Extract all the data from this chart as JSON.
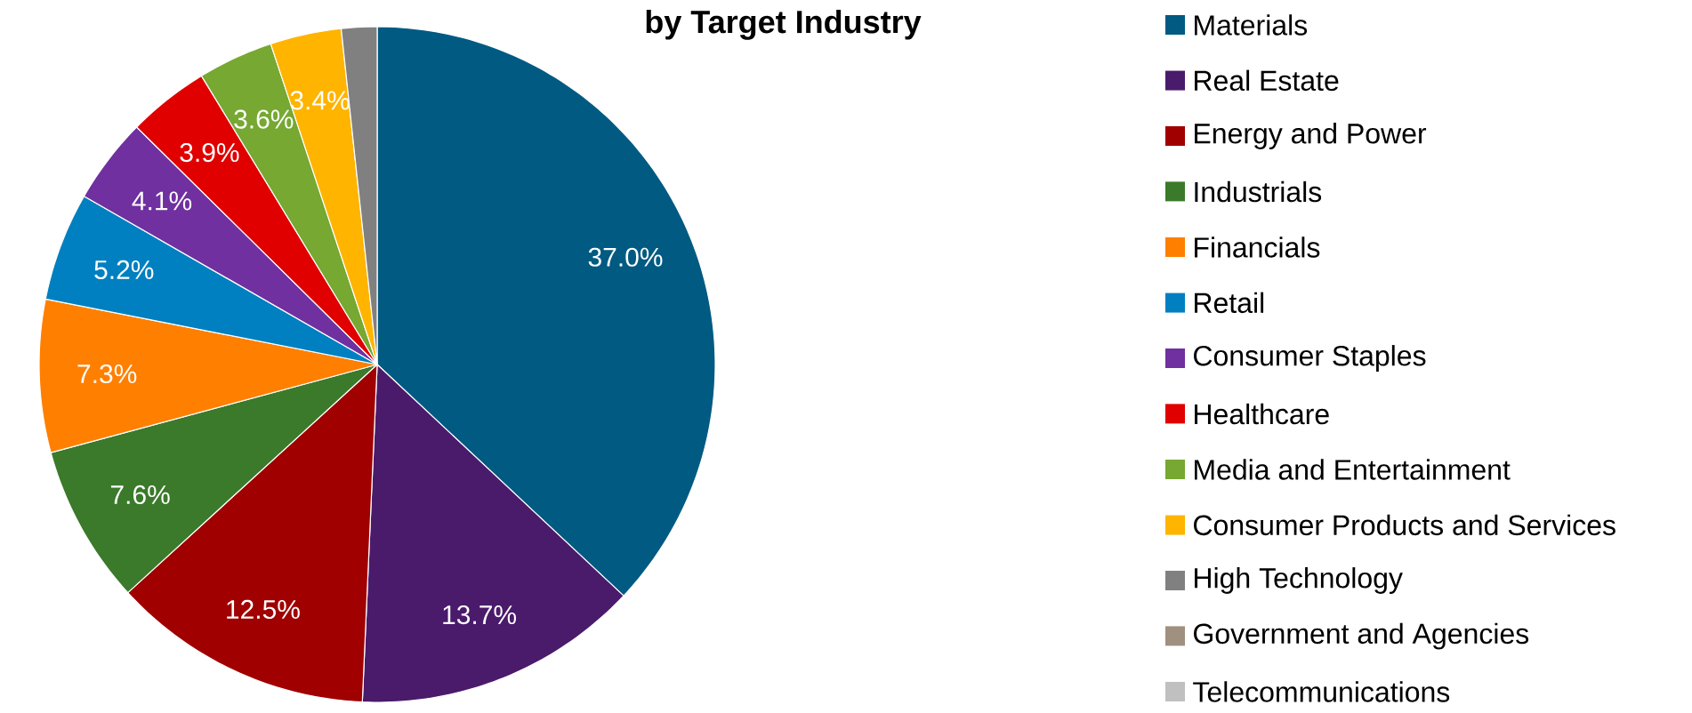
{
  "chart_data": {
    "type": "pie",
    "title": "by Target Industry",
    "categories": [
      "Materials",
      "Real Estate",
      "Energy and Power",
      "Industrials",
      "Financials",
      "Retail",
      "Consumer Staples",
      "Healthcare",
      "Media and Entertainment",
      "Consumer Products and Services",
      "High Technology",
      "Government and Agencies",
      "Telecommunications"
    ],
    "values": [
      37.0,
      13.7,
      12.5,
      7.6,
      7.3,
      5.2,
      4.1,
      3.9,
      3.6,
      3.4,
      1.7,
      null,
      null
    ],
    "value_labels": [
      "37.0%",
      "13.7%",
      "12.5%",
      "7.6%",
      "7.3%",
      "5.2%",
      "4.1%",
      "3.9%",
      "3.6%",
      "3.4%",
      null,
      null,
      null
    ],
    "colors": [
      "#005a82",
      "#4a1a6b",
      "#a00000",
      "#3a7a2a",
      "#ff7f00",
      "#0080c0",
      "#7030a0",
      "#e00000",
      "#76a832",
      "#ffb400",
      "#808080",
      "#a09080",
      "#c0c0c0"
    ],
    "legend": "right"
  }
}
